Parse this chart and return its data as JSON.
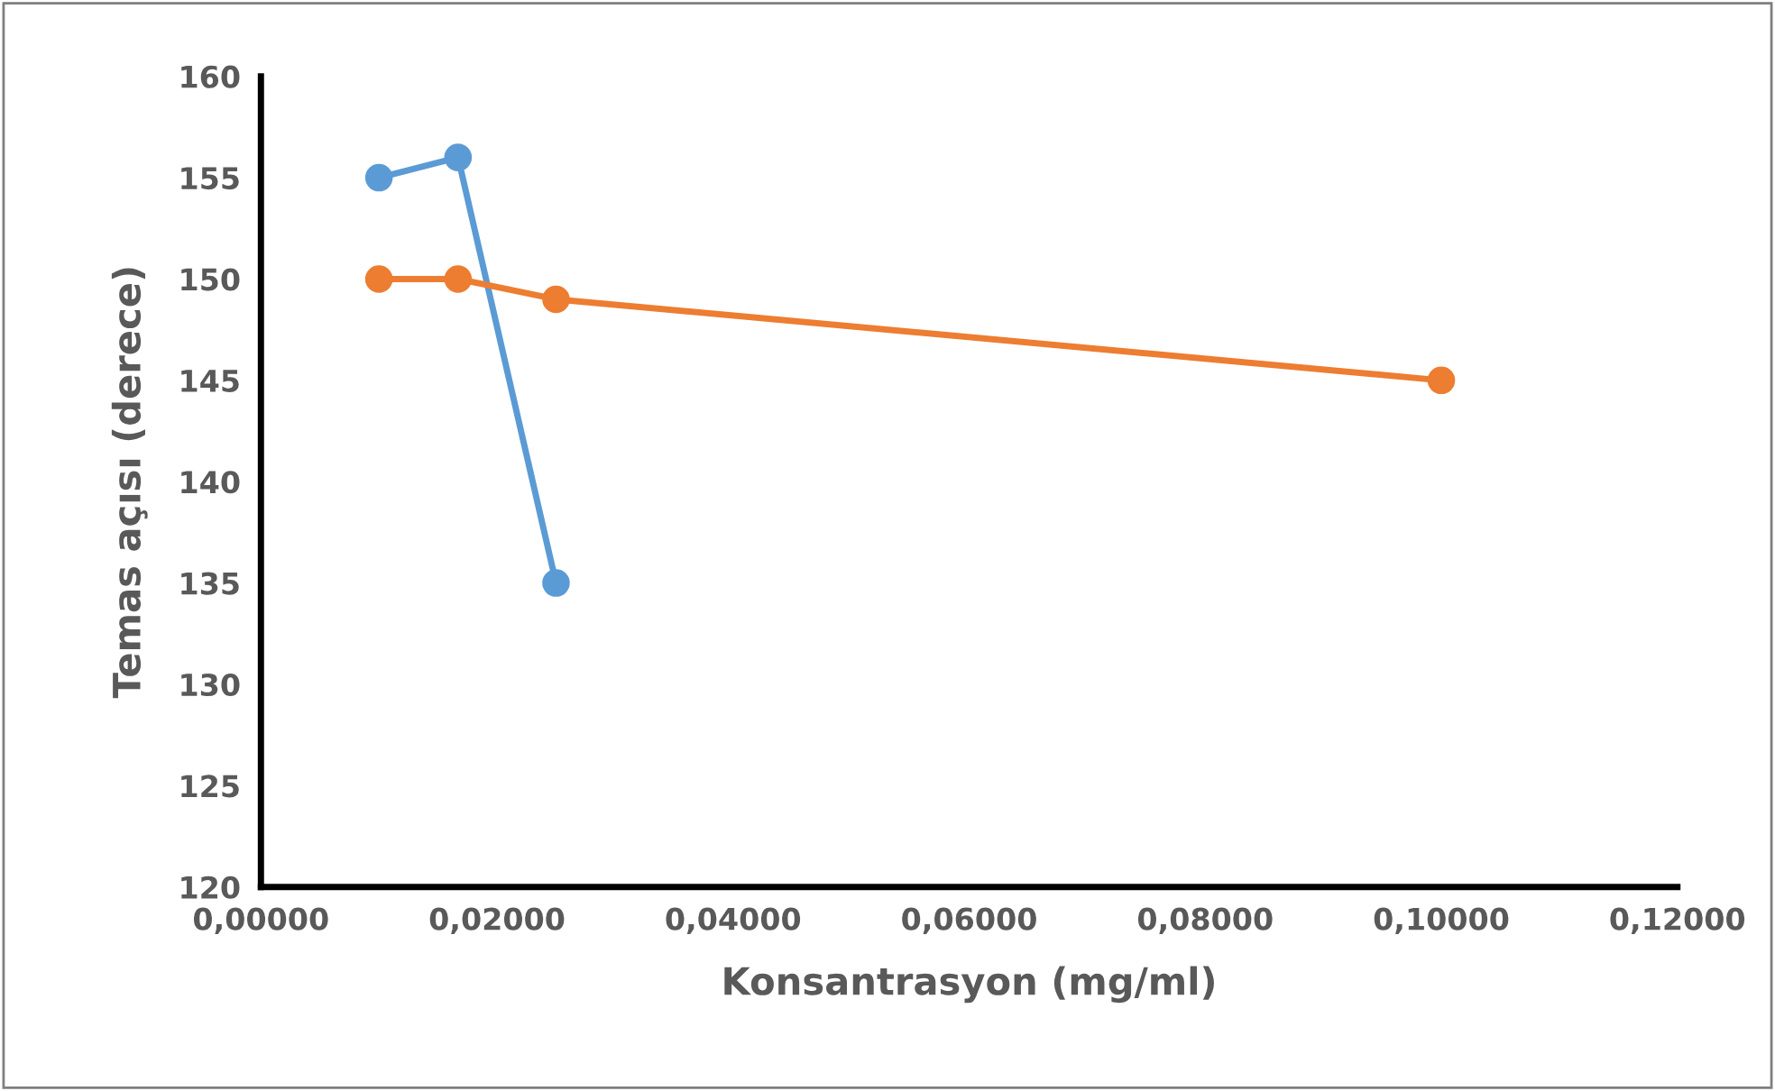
{
  "chart_data": {
    "type": "line",
    "xlabel": "Konsantrasyon (mg/ml)",
    "ylabel": "Temas açısı (derece)",
    "xlim": [
      0,
      0.12
    ],
    "ylim": [
      120,
      160
    ],
    "xticks": [
      {
        "value": 0,
        "label": "0,00000"
      },
      {
        "value": 0.02,
        "label": "0,02000"
      },
      {
        "value": 0.04,
        "label": "0,04000"
      },
      {
        "value": 0.06,
        "label": "0,06000"
      },
      {
        "value": 0.08,
        "label": "0,08000"
      },
      {
        "value": 0.1,
        "label": "0,10000"
      },
      {
        "value": 0.12,
        "label": "0,12000"
      }
    ],
    "yticks": [
      120,
      125,
      130,
      135,
      140,
      145,
      150,
      155,
      160
    ],
    "grid": false,
    "marker": "circle",
    "line_style": "solid",
    "series": [
      {
        "color": "#5b9bd5",
        "x": [
          0.01,
          0.0167,
          0.025
        ],
        "values": [
          155,
          156,
          135
        ]
      },
      {
        "color": "#ed7d31",
        "x": [
          0.01,
          0.0167,
          0.025,
          0.1
        ],
        "values": [
          150,
          150,
          149,
          145
        ]
      }
    ]
  }
}
